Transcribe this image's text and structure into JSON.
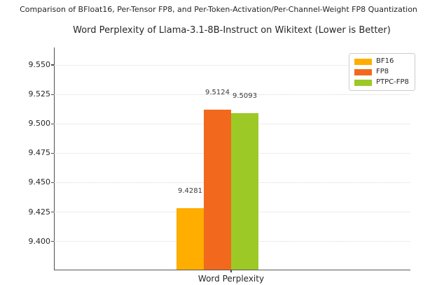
{
  "chart_data": {
    "type": "bar",
    "suptitle": "Comparison of BFloat16, Per-Tensor FP8, and Per-Token-Activation/Per-Channel-Weight FP8 Quantization",
    "title": "Word Perplexity of Llama-3.1-8B-Instruct on Wikitext (Lower is Better)",
    "categories": [
      "Word Perplexity"
    ],
    "series": [
      {
        "name": "BF16",
        "values": [
          9.4281
        ],
        "color": "#FFAE00"
      },
      {
        "name": "FP8",
        "values": [
          9.5124
        ],
        "color": "#F2691E"
      },
      {
        "name": "PTPC-FP8",
        "values": [
          9.5093
        ],
        "color": "#9CC925"
      }
    ],
    "value_labels": [
      "9.4281",
      "9.5124",
      "9.5093"
    ],
    "xlabel": "",
    "ylabel": "",
    "ylim": [
      9.376,
      9.565
    ],
    "yticks": [
      9.4,
      9.425,
      9.45,
      9.475,
      9.5,
      9.525,
      9.55
    ],
    "ytick_labels": [
      "9.400",
      "9.425",
      "9.450",
      "9.475",
      "9.500",
      "9.525",
      "9.550"
    ],
    "grid": true,
    "grid_style": "dotted",
    "legend": {
      "position": "upper right",
      "entries": [
        "BF16",
        "FP8",
        "PTPC-FP8"
      ]
    }
  }
}
